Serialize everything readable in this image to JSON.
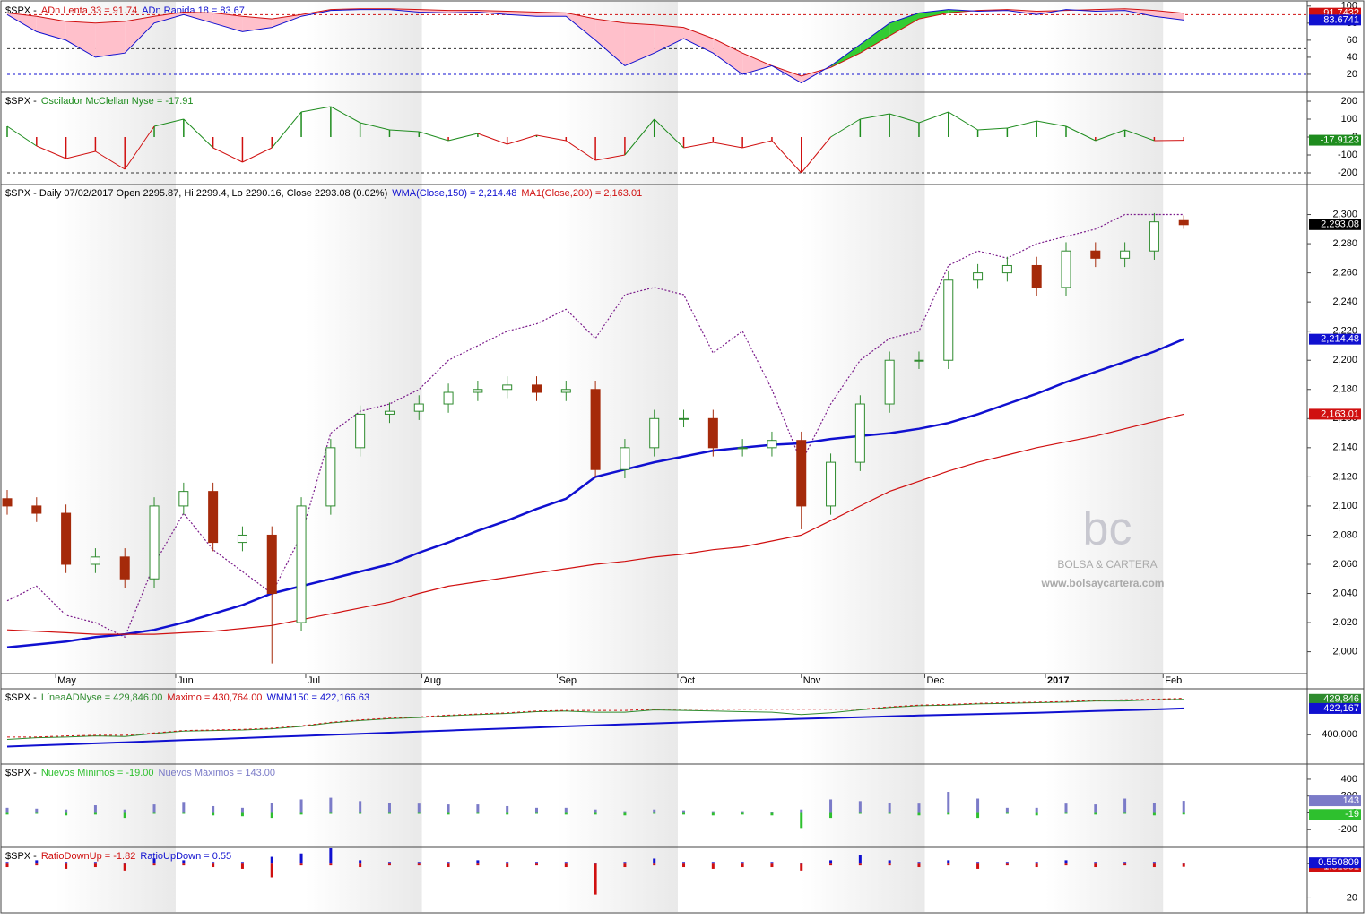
{
  "chart_data": [
    {
      "type": "area",
      "title": "$SPX -",
      "series": [
        {
          "name": "ADn Lenta 33 = 91.74",
          "color": "#d01010",
          "last_label": "91.7432",
          "values": [
            92,
            88,
            82,
            80,
            82,
            88,
            93,
            92,
            88,
            85,
            90,
            96,
            97,
            97,
            96,
            95,
            95,
            94,
            93,
            92,
            85,
            80,
            78,
            75,
            62,
            45,
            30,
            18,
            28,
            45,
            65,
            85,
            92,
            95,
            96,
            94,
            95,
            96,
            97,
            95,
            91.74
          ]
        },
        {
          "name": "ADn Rapida 18 = 83.67",
          "color": "#1010d0",
          "last_label": "83.6741",
          "values": [
            90,
            70,
            60,
            40,
            45,
            80,
            90,
            80,
            70,
            75,
            88,
            95,
            96,
            96,
            93,
            92,
            93,
            90,
            88,
            88,
            60,
            30,
            45,
            62,
            45,
            20,
            30,
            10,
            30,
            55,
            80,
            92,
            96,
            94,
            95,
            90,
            96,
            94,
            95,
            88,
            83.67
          ]
        }
      ],
      "fill_below": "#ffc0cb",
      "fill_above": "#33cc33",
      "ylim": [
        0,
        104
      ],
      "yticks": [
        20,
        40,
        60,
        80,
        100
      ],
      "levels": [
        {
          "value": 90,
          "color": "#d01010"
        },
        {
          "value": 50,
          "color": "#333333"
        },
        {
          "value": 20,
          "color": "#1010d0"
        }
      ]
    },
    {
      "type": "stem",
      "title": "$SPX -",
      "series": [
        {
          "name": "Oscilador McClellan Nyse = -17.91",
          "color": "#1e8c1e",
          "negative_color": "#d01010",
          "last_label": "-17.9123",
          "values": [
            60,
            -50,
            -120,
            -80,
            -180,
            60,
            100,
            -60,
            -140,
            -60,
            140,
            170,
            80,
            40,
            30,
            -20,
            20,
            -40,
            10,
            -20,
            -130,
            -100,
            100,
            -60,
            -30,
            -60,
            -20,
            -200,
            0,
            100,
            130,
            80,
            140,
            40,
            50,
            90,
            60,
            -20,
            40,
            -20,
            -17.91
          ]
        }
      ],
      "ylim": [
        -260,
        245
      ],
      "yticks": [
        -200,
        -100,
        0,
        100,
        200
      ],
      "levels": [
        {
          "value": -200,
          "color": "#333333"
        }
      ]
    },
    {
      "type": "candlestick",
      "title": "$SPX - Daily 07/02/2017 Open 2295.87, Hi 2299.4, Lo 2290.16, Close 2293.08 (0.02%)",
      "candles": {
        "up_color": "#2e8b2e",
        "down_color": "#a52a0a",
        "last_label": "2,293.08",
        "open": [
          2105,
          2100,
          2095,
          2060,
          2065,
          2050,
          2100,
          2110,
          2075,
          2080,
          2020,
          2100,
          2140,
          2163,
          2165,
          2170,
          2178,
          2180,
          2183,
          2178,
          2180,
          2125,
          2140,
          2160,
          2160,
          2140,
          2140,
          2145,
          2100,
          2130,
          2170,
          2200,
          2200,
          2255,
          2260,
          2265,
          2250,
          2275,
          2270,
          2275,
          2295.87
        ],
        "high": [
          2111,
          2106,
          2101,
          2071,
          2071,
          2106,
          2116,
          2116,
          2086,
          2086,
          2106,
          2146,
          2169,
          2171,
          2176,
          2184,
          2186,
          2189,
          2189,
          2186,
          2186,
          2146,
          2166,
          2166,
          2166,
          2146,
          2151,
          2151,
          2136,
          2176,
          2206,
          2206,
          2261,
          2266,
          2271,
          2271,
          2281,
          2281,
          2281,
          2301,
          2299.4
        ],
        "low": [
          2094,
          2089,
          2054,
          2054,
          2044,
          2044,
          2094,
          2069,
          2069,
          1992,
          2014,
          2094,
          2134,
          2157,
          2159,
          2164,
          2172,
          2174,
          2172,
          2172,
          2120,
          2119,
          2134,
          2154,
          2134,
          2134,
          2134,
          2084,
          2094,
          2124,
          2164,
          2194,
          2194,
          2249,
          2254,
          2244,
          2244,
          2264,
          2264,
          2269,
          2290.16
        ],
        "close": [
          2100,
          2095,
          2060,
          2065,
          2050,
          2100,
          2110,
          2075,
          2080,
          2040,
          2100,
          2140,
          2163,
          2165,
          2170,
          2178,
          2180,
          2183,
          2178,
          2180,
          2125,
          2140,
          2160,
          2160,
          2140,
          2140,
          2145,
          2100,
          2130,
          2170,
          2200,
          2200,
          2255,
          2260,
          2265,
          2250,
          2275,
          2270,
          2275,
          2295,
          2293.08
        ]
      },
      "series": [
        {
          "color": "#7a1a8a",
          "style": "dotted",
          "values": [
            2035,
            2045,
            2025,
            2020,
            2010,
            2060,
            2095,
            2070,
            2055,
            2040,
            2080,
            2150,
            2165,
            2170,
            2180,
            2200,
            2210,
            2220,
            2225,
            2235,
            2215,
            2245,
            2250,
            2245,
            2205,
            2220,
            2180,
            2130,
            2170,
            2200,
            2215,
            2220,
            2265,
            2275,
            2270,
            2280,
            2285,
            2290,
            2300,
            2300,
            2300
          ]
        },
        {
          "name": "WMA(Close,150) = 2,214.48",
          "color": "#1010d0",
          "style": "thick",
          "last_label": "2,214.48",
          "values": [
            2003,
            2005,
            2007,
            2010,
            2012,
            2015,
            2020,
            2026,
            2032,
            2040,
            2045,
            2050,
            2055,
            2060,
            2068,
            2075,
            2083,
            2090,
            2098,
            2105,
            2120,
            2125,
            2130,
            2134,
            2138,
            2140,
            2142,
            2143,
            2146,
            2148,
            2150,
            2153,
            2157,
            2163,
            2170,
            2177,
            2185,
            2192,
            2199,
            2206,
            2214.48
          ]
        },
        {
          "name": "MA1(Close,200) = 2,163.01",
          "color": "#d01010",
          "style": "solid",
          "last_label": "2,163.01",
          "values": [
            2015,
            2014,
            2013,
            2012,
            2012,
            2012,
            2013,
            2014,
            2016,
            2018,
            2022,
            2026,
            2030,
            2034,
            2040,
            2045,
            2048,
            2051,
            2054,
            2057,
            2060,
            2062,
            2065,
            2067,
            2070,
            2072,
            2076,
            2080,
            2090,
            2100,
            2110,
            2117,
            2124,
            2130,
            2135,
            2140,
            2144,
            2148,
            2153,
            2158,
            2163.01
          ]
        }
      ],
      "ylim": [
        1985,
        2320
      ],
      "yticks": [
        {
          "value": 2000,
          "label": "2,000"
        },
        {
          "value": 2020,
          "label": "2,020"
        },
        {
          "value": 2040,
          "label": "2,040"
        },
        {
          "value": 2060,
          "label": "2,060"
        },
        {
          "value": 2080,
          "label": "2,080"
        },
        {
          "value": 2100,
          "label": "2,100"
        },
        {
          "value": 2120,
          "label": "2,120"
        },
        {
          "value": 2140,
          "label": "2,140"
        },
        {
          "value": 2160,
          "label": "2,160"
        },
        {
          "value": 2180,
          "label": "2,180"
        },
        {
          "value": 2200,
          "label": "2,200"
        },
        {
          "value": 2220,
          "label": "2,220"
        },
        {
          "value": 2240,
          "label": "2,240"
        },
        {
          "value": 2260,
          "label": "2,260"
        },
        {
          "value": 2280,
          "label": "2,280"
        },
        {
          "value": 2300,
          "label": "2,300"
        }
      ],
      "xlim": [
        0,
        44.2
      ],
      "xticks": [
        {
          "value": 1.65,
          "label": "May"
        },
        {
          "value": 5.73,
          "label": "Jun"
        },
        {
          "value": 10.15,
          "label": "Jul"
        },
        {
          "value": 14.1,
          "label": "Aug"
        },
        {
          "value": 18.7,
          "label": "Sep"
        },
        {
          "value": 22.8,
          "label": "Oct"
        },
        {
          "value": 27.0,
          "label": "Nov"
        },
        {
          "value": 31.2,
          "label": "Dec"
        },
        {
          "value": 35.3,
          "label": "2017"
        },
        {
          "value": 39.3,
          "label": "Feb"
        }
      ],
      "watermark": {
        "logo": "bc",
        "name": "BOLSA & CARTERA",
        "url": "www.bolsaycartera.com"
      }
    },
    {
      "type": "line",
      "title": "$SPX -",
      "series": [
        {
          "name": "LíneaADNyse = 429,846.00",
          "color": "#2e8b2e",
          "style": "solid",
          "last_label": "429,846",
          "values": [
            396000,
            397500,
            398000,
            399000,
            398500,
            401000,
            403000,
            403500,
            404000,
            405000,
            407000,
            410000,
            412000,
            413500,
            414500,
            416000,
            417000,
            418000,
            419500,
            420000,
            419000,
            419000,
            421000,
            420500,
            420000,
            419500,
            419000,
            417000,
            418500,
            421000,
            423000,
            424500,
            425000,
            426000,
            426500,
            427000,
            427500,
            428500,
            428500,
            429500,
            429846
          ]
        },
        {
          "name": "Maximo = 430,764.00",
          "color": "#d01010",
          "style": "dashed",
          "values": [
            398000,
            398000,
            399000,
            399500,
            399500,
            401500,
            403500,
            404000,
            404500,
            405500,
            407500,
            410500,
            412500,
            414000,
            415000,
            416500,
            417500,
            418500,
            420000,
            420500,
            420500,
            420500,
            421500,
            421500,
            421500,
            421500,
            421500,
            421500,
            421500,
            421500,
            423500,
            425000,
            425500,
            426500,
            427000,
            427500,
            428000,
            429000,
            429500,
            430000,
            430764
          ]
        },
        {
          "name": "WMM150 = 422,166.63",
          "color": "#1010d0",
          "style": "thick",
          "last_label": "422,167",
          "values": [
            390000,
            390900,
            391800,
            392700,
            393600,
            394500,
            395400,
            396300,
            397200,
            398100,
            399000,
            399900,
            400800,
            401700,
            402600,
            403500,
            404400,
            405300,
            406200,
            407100,
            408000,
            408800,
            409600,
            410400,
            411200,
            412000,
            412700,
            413400,
            414100,
            414800,
            415500,
            416200,
            416800,
            417400,
            418000,
            418600,
            419300,
            420000,
            420700,
            421400,
            422167
          ]
        }
      ],
      "ylim": [
        376000,
        438000
      ],
      "yticks": [
        {
          "value": 400000,
          "label": "400,000"
        }
      ]
    },
    {
      "type": "bar",
      "title": "$SPX -",
      "series": [
        {
          "name": "Nuevos Mínimos = -19.00",
          "color": "#2ec02e",
          "last_label": "-19",
          "values": [
            -20,
            -10,
            -30,
            -20,
            -60,
            -10,
            -10,
            -30,
            -40,
            -60,
            -20,
            -10,
            -5,
            -5,
            -10,
            -20,
            -10,
            -20,
            -10,
            -20,
            -20,
            -30,
            -10,
            -20,
            -30,
            -20,
            -30,
            -180,
            -60,
            -10,
            -10,
            -30,
            -20,
            -60,
            -10,
            -30,
            -10,
            -20,
            -10,
            -30,
            -19
          ]
        },
        {
          "name": "Nuevos Máximos = 143.00",
          "color": "#7b7bc8",
          "last_label": "143",
          "values": [
            60,
            50,
            40,
            90,
            40,
            100,
            130,
            80,
            60,
            120,
            160,
            180,
            140,
            120,
            110,
            100,
            100,
            80,
            60,
            60,
            40,
            20,
            40,
            30,
            20,
            20,
            10,
            40,
            160,
            140,
            120,
            110,
            250,
            170,
            60,
            60,
            110,
            100,
            170,
            120,
            143
          ]
        }
      ],
      "ylim": [
        -400,
        570
      ],
      "yticks": [
        -200,
        0,
        200,
        400
      ]
    },
    {
      "type": "bar",
      "title": "$SPX -",
      "series": [
        {
          "name": "RatioDownUp = -1.82",
          "color": "#d01010",
          "last_label": "-1.81551",
          "values": [
            -2,
            -1,
            -3,
            -2,
            -4,
            -1,
            -1,
            -2,
            -3,
            -8,
            -1,
            -1,
            -2,
            -1,
            -1,
            -2,
            -1,
            -2,
            -1,
            -2,
            -18,
            -2,
            -1,
            -2,
            -3,
            -2,
            -2,
            -4,
            -1,
            -1,
            -1,
            -2,
            -1,
            -3,
            -1,
            -2,
            -1,
            -2,
            -1,
            -2,
            -1.82
          ]
        },
        {
          "name": "RatioUpDown = 0.55",
          "color": "#1010d0",
          "last_label": "0.550809",
          "values": [
            1,
            2,
            1,
            1,
            0.5,
            3,
            2,
            1,
            1,
            4,
            6,
            9,
            2,
            1,
            1,
            1,
            2,
            1,
            1,
            1,
            0.5,
            1,
            3,
            1,
            1,
            1,
            1,
            0.5,
            2,
            5,
            2,
            1,
            2,
            1,
            1,
            1,
            2,
            1,
            1,
            1,
            0.55
          ]
        }
      ],
      "ylim": [
        -25,
        9
      ],
      "yticks": [
        -20,
        0
      ]
    }
  ]
}
